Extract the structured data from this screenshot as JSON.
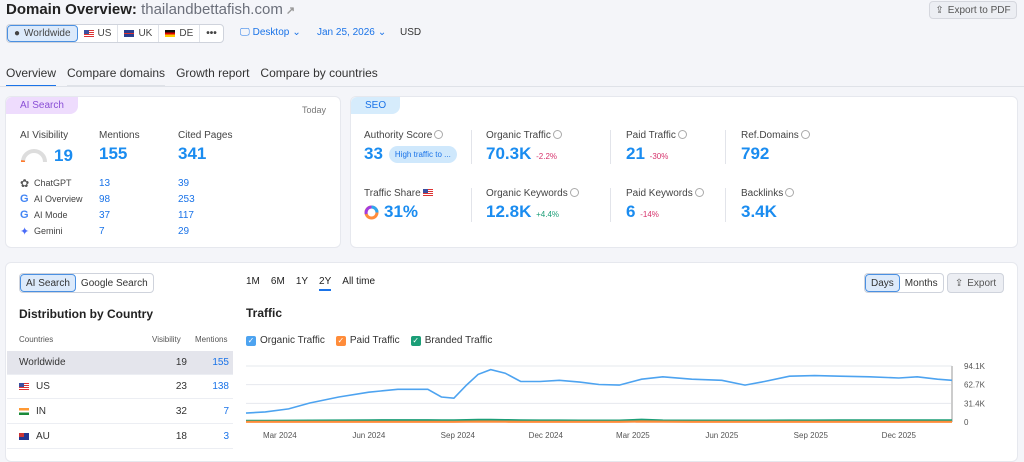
{
  "header": {
    "title": "Domain Overview:",
    "domain": "thailandbettafish.com",
    "export_pdf": "Export to PDF"
  },
  "filters": {
    "regions": [
      {
        "label": "Worldwide",
        "active": true
      },
      {
        "label": "US"
      },
      {
        "label": "UK"
      },
      {
        "label": "DE"
      },
      {
        "label": "•••"
      }
    ],
    "device": "Desktop",
    "date": "Jan 25, 2026",
    "currency": "USD"
  },
  "tabs": [
    "Overview",
    "Compare domains",
    "Growth report",
    "Compare by countries"
  ],
  "ai": {
    "tag": "AI Search",
    "period": "Today",
    "visibility_label": "AI Visibility",
    "visibility": "19",
    "visibility_score": 19,
    "mentions_label": "Mentions",
    "mentions": "155",
    "cited_label": "Cited Pages",
    "cited": "341",
    "sources": [
      {
        "name": "ChatGPT",
        "mentions": "13",
        "cited": "39"
      },
      {
        "name": "AI Overview",
        "mentions": "98",
        "cited": "253"
      },
      {
        "name": "AI Mode",
        "mentions": "37",
        "cited": "117"
      },
      {
        "name": "Gemini",
        "mentions": "7",
        "cited": "29"
      }
    ]
  },
  "seo": {
    "tag": "SEO",
    "authority_label": "Authority Score",
    "authority": "33",
    "authority_badge": "High traffic to ...",
    "organic_traffic_label": "Organic Traffic",
    "organic_traffic": "70.3K",
    "organic_traffic_delta": "-2.2%",
    "paid_traffic_label": "Paid Traffic",
    "paid_traffic": "21",
    "paid_traffic_delta": "-30%",
    "ref_label": "Ref.Domains",
    "ref": "792",
    "share_label": "Traffic Share",
    "share": "31%",
    "organic_kw_label": "Organic Keywords",
    "organic_kw": "12.8K",
    "organic_kw_delta": "+4.4%",
    "paid_kw_label": "Paid Keywords",
    "paid_kw": "6",
    "paid_kw_delta": "-14%",
    "backlinks_label": "Backlinks",
    "backlinks": "3.4K"
  },
  "dist": {
    "toggle": [
      "AI Search",
      "Google Search"
    ],
    "title": "Distribution by Country",
    "cols": [
      "Countries",
      "Visibility",
      "Mentions"
    ],
    "rows": [
      {
        "country": "Worldwide",
        "visibility": "19",
        "mentions": "155"
      },
      {
        "country": "US",
        "visibility": "23",
        "mentions": "138"
      },
      {
        "country": "IN",
        "visibility": "32",
        "mentions": "7"
      },
      {
        "country": "AU",
        "visibility": "18",
        "mentions": "3"
      }
    ]
  },
  "traffic": {
    "ranges": [
      "1M",
      "6M",
      "1Y",
      "2Y",
      "All time"
    ],
    "active_range": "2Y",
    "title": "Traffic",
    "granularity": [
      "Days",
      "Months"
    ],
    "export": "Export"
  },
  "chart_data": {
    "type": "line",
    "title": "Traffic",
    "xlim": [
      "2024-01-26",
      "2026-01-25"
    ],
    "ylim": [
      0,
      94100
    ],
    "x_ticks": [
      "Mar 2024",
      "Jun 2024",
      "Sep 2024",
      "Dec 2024",
      "Mar 2025",
      "Jun 2025",
      "Sep 2025",
      "Dec 2025"
    ],
    "y_ticks": [
      "94.1K",
      "62.7K",
      "31.4K",
      "0"
    ],
    "grid": true,
    "legend": "top-left",
    "x": [
      "2024-01-26",
      "2024-02-15",
      "2024-03-10",
      "2024-04-01",
      "2024-05-01",
      "2024-06-01",
      "2024-07-01",
      "2024-08-01",
      "2024-08-15",
      "2024-08-28",
      "2024-09-10",
      "2024-09-22",
      "2024-10-05",
      "2024-10-20",
      "2024-11-05",
      "2024-11-25",
      "2024-12-15",
      "2025-01-05",
      "2025-01-25",
      "2025-02-15",
      "2025-03-10",
      "2025-04-01",
      "2025-05-01",
      "2025-06-01",
      "2025-06-25",
      "2025-07-15",
      "2025-08-10",
      "2025-09-05",
      "2025-10-01",
      "2025-11-01",
      "2025-12-01",
      "2025-12-20",
      "2026-01-10",
      "2026-01-25"
    ],
    "series": [
      {
        "name": "Organic Traffic",
        "color": "#4da3f0",
        "values": [
          15000,
          17000,
          22000,
          32000,
          42000,
          50000,
          55000,
          55000,
          42000,
          40000,
          62000,
          80000,
          88000,
          82000,
          68000,
          68000,
          70000,
          67000,
          63000,
          62000,
          72000,
          76000,
          72000,
          70000,
          62000,
          68000,
          77000,
          78000,
          77000,
          76000,
          74000,
          76000,
          72000,
          70000
        ]
      },
      {
        "name": "Paid Traffic",
        "color": "#ff8c3a",
        "values": [
          300,
          300,
          300,
          300,
          300,
          300,
          300,
          300,
          300,
          300,
          500,
          600,
          600,
          500,
          300,
          300,
          300,
          300,
          300,
          400,
          900,
          500,
          300,
          300,
          300,
          300,
          300,
          300,
          300,
          300,
          300,
          300,
          300,
          300
        ]
      },
      {
        "name": "Branded Traffic",
        "color": "#1b9e77",
        "values": [
          2000,
          2100,
          2200,
          2400,
          2600,
          2800,
          3000,
          3000,
          2800,
          2800,
          3200,
          3500,
          3500,
          3200,
          2800,
          2600,
          2500,
          2400,
          2300,
          2400,
          3800,
          2600,
          2400,
          2300,
          2300,
          2400,
          2600,
          2600,
          2700,
          2700,
          2700,
          2700,
          2700,
          2700
        ]
      }
    ]
  }
}
